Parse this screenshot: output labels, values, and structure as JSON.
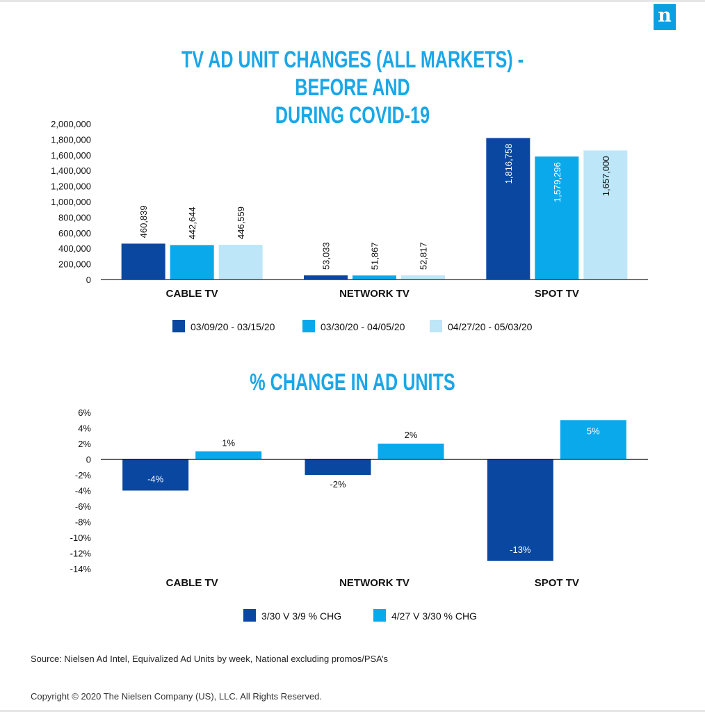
{
  "logo": {
    "glyph": "n"
  },
  "source": "Source: Nielsen Ad Intel, Equivalized Ad Units by week, National excluding promos/PSA’s",
  "copyright": "Copyright © 2020 The Nielsen Company (US), LLC. All Rights Reserved.",
  "colors": {
    "dark_blue": "#0a47a0",
    "mid_blue": "#0aa9ec",
    "light_blue": "#bde7f8",
    "title": "#1aa7e8"
  },
  "chart_data": [
    {
      "type": "bar",
      "title": "TV AD UNIT CHANGES (ALL MARKETS) - BEFORE AND DURING COVID-19",
      "title_lines": [
        "TV AD UNIT CHANGES (ALL MARKETS) - BEFORE AND",
        "DURING COVID-19"
      ],
      "categories": [
        "CABLE TV",
        "NETWORK TV",
        "SPOT TV"
      ],
      "series": [
        {
          "name": "03/09/20 - 03/15/20",
          "values": [
            460839,
            53033,
            1816758
          ],
          "labels": [
            "460,839",
            "53,033",
            "1,816,758"
          ]
        },
        {
          "name": "03/30/20 - 04/05/20",
          "values": [
            442644,
            51867,
            1579296
          ],
          "labels": [
            "442,644",
            "51,867",
            "1,579,296"
          ]
        },
        {
          "name": "04/27/20 - 05/03/20",
          "values": [
            446559,
            52817,
            1657000
          ],
          "labels": [
            "446,559",
            "52,817",
            "1,657,000"
          ]
        }
      ],
      "ylim": [
        0,
        2000000
      ],
      "yticks": [
        0,
        200000,
        400000,
        600000,
        800000,
        1000000,
        1200000,
        1400000,
        1600000,
        1800000,
        2000000
      ],
      "ytick_labels": [
        "0",
        "200,000",
        "400,000",
        "600,000",
        "800,000",
        "1,000,000",
        "1,200,000",
        "1,400,000",
        "1,600,000",
        "1,800,000",
        "2,000,000"
      ],
      "legend_position": "bottom",
      "grid": false
    },
    {
      "type": "bar",
      "title": "% CHANGE IN AD UNITS",
      "categories": [
        "CABLE TV",
        "NETWORK TV",
        "SPOT TV"
      ],
      "series": [
        {
          "name": "3/30 V 3/9 % CHG",
          "values": [
            -4,
            -2,
            -13
          ],
          "labels": [
            "-4%",
            "-2%",
            "-13%"
          ]
        },
        {
          "name": "4/27 V 3/30 % CHG",
          "values": [
            1,
            2,
            5
          ],
          "labels": [
            "1%",
            "2%",
            "5%"
          ]
        }
      ],
      "ylim": [
        -14,
        6
      ],
      "yticks": [
        -14,
        -12,
        -10,
        -8,
        -6,
        -4,
        -2,
        0,
        2,
        4,
        6
      ],
      "ytick_labels": [
        "-14%",
        "-12%",
        "-10%",
        "-8%",
        "-6%",
        "-4%",
        "-2%",
        "0",
        "2%",
        "4%",
        "6%"
      ],
      "legend_position": "bottom",
      "grid": false
    }
  ]
}
